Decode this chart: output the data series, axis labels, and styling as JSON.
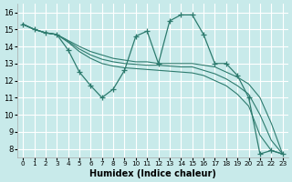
{
  "xlabel": "Humidex (Indice chaleur)",
  "bg_color": "#c8eaea",
  "grid_color": "#ffffff",
  "line_color": "#2d7b6e",
  "xlim": [
    -0.5,
    23.5
  ],
  "ylim": [
    7.5,
    16.5
  ],
  "xticks": [
    0,
    1,
    2,
    3,
    4,
    5,
    6,
    7,
    8,
    9,
    10,
    11,
    12,
    13,
    14,
    15,
    16,
    17,
    18,
    19,
    20,
    21,
    22,
    23
  ],
  "yticks": [
    8,
    9,
    10,
    11,
    12,
    13,
    14,
    15,
    16
  ],
  "main_x": [
    0,
    1,
    2,
    3,
    4,
    5,
    6,
    7,
    8,
    9,
    10,
    11,
    12,
    13,
    14,
    15,
    16,
    17,
    18,
    19,
    20,
    21,
    22,
    23
  ],
  "main_y": [
    15.3,
    15.0,
    14.8,
    14.7,
    13.8,
    12.5,
    11.7,
    11.0,
    11.5,
    12.6,
    14.6,
    14.9,
    13.0,
    15.5,
    15.85,
    15.85,
    14.7,
    13.0,
    13.0,
    12.3,
    11.0,
    7.7,
    7.9,
    7.7
  ],
  "fan_lines": [
    [
      15.3,
      15.0,
      14.8,
      14.7,
      14.35,
      14.0,
      13.7,
      13.5,
      13.3,
      13.2,
      13.1,
      13.1,
      13.0,
      13.0,
      13.0,
      13.0,
      12.9,
      12.8,
      12.5,
      12.2,
      11.8,
      11.0,
      9.5,
      7.7
    ],
    [
      15.3,
      15.0,
      14.8,
      14.7,
      14.3,
      13.85,
      13.5,
      13.25,
      13.1,
      13.0,
      12.95,
      12.9,
      12.9,
      12.85,
      12.8,
      12.8,
      12.6,
      12.4,
      12.1,
      11.7,
      11.2,
      10.0,
      8.5,
      7.7
    ],
    [
      15.3,
      15.0,
      14.8,
      14.7,
      14.25,
      13.7,
      13.3,
      13.0,
      12.85,
      12.75,
      12.7,
      12.65,
      12.6,
      12.55,
      12.5,
      12.45,
      12.3,
      12.0,
      11.7,
      11.2,
      10.5,
      8.8,
      7.9,
      7.7
    ]
  ]
}
